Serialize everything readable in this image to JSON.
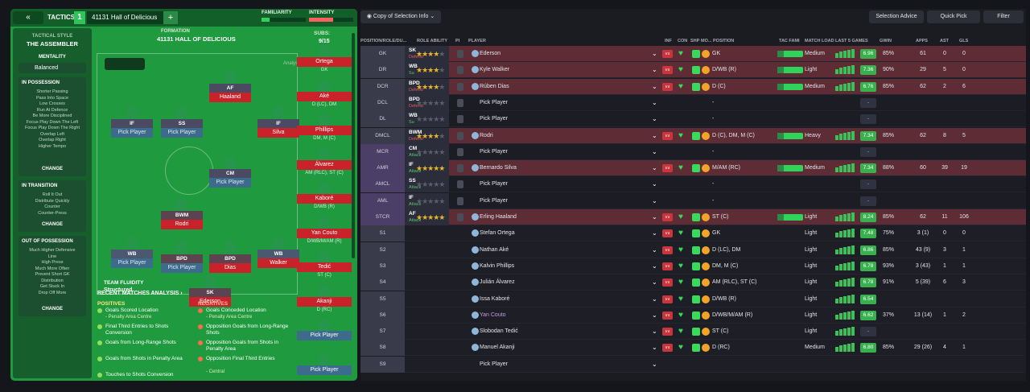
{
  "header": {
    "back_icon": "«",
    "tactics_label": "TACTICS",
    "tactic_num": "1",
    "tactic_name": "41131 Hall of Delicious",
    "add": "+",
    "familiarity": "FAMILIARITY",
    "intensity": "INTENSITY",
    "familiarity_level": 0.18,
    "intensity_level": 0.55
  },
  "sidebar": {
    "style_label": "TACTICAL STYLE",
    "style_value": "THE ASSEMBLER",
    "mentality_label": "MENTALITY",
    "mentality_value": "Balanced",
    "in_possession": {
      "title": "IN POSSESSION",
      "items": [
        "Shorter Passing",
        "Pass Into Space",
        "Low Crosses",
        "Run At Defence",
        "Be More Disciplined",
        "Focus Play Down The Left",
        "Focus Play Down The Right",
        "Overlap Left",
        "Overlap Right",
        "Higher Tempo"
      ],
      "change": "CHANGE"
    },
    "in_transition": {
      "title": "IN TRANSITION",
      "items": [
        "Roll It Out",
        "Distribute Quickly",
        "Counter",
        "Counter-Press"
      ],
      "change": "CHANGE"
    },
    "out_of_possession": {
      "title": "OUT OF POSSESSION",
      "items": [
        "Much Higher Defensive",
        "Line",
        "High Press",
        "Much More Often",
        "Prevent Short GK",
        "Distribution",
        "Get Stuck In",
        "Drop Off More"
      ],
      "change": "CHANGE"
    }
  },
  "formation": {
    "label": "FORMATION",
    "name": "41131 HALL OF DELICIOUS",
    "analysis": "Analysis",
    "team_fluidity_label": "TEAM FLUIDITY",
    "team_fluidity_value": "Structured",
    "subs_label": "SUBS:",
    "subs_value": "9/15",
    "players": [
      {
        "pos": "AF",
        "duty": "At",
        "name": "Haaland"
      },
      {
        "pos": "IF",
        "duty": "At",
        "name": "Pick Player"
      },
      {
        "pos": "SS",
        "duty": "At",
        "name": "Pick Player"
      },
      {
        "pos": "IF",
        "duty": "At",
        "name": "Silva"
      },
      {
        "pos": "CM",
        "duty": "At",
        "name": "Pick Player"
      },
      {
        "pos": "BWM",
        "duty": "De",
        "name": "Rodri"
      },
      {
        "pos": "WB",
        "duty": "Su",
        "name": "Pick Player"
      },
      {
        "pos": "BPD",
        "duty": "De",
        "name": "Pick Player"
      },
      {
        "pos": "BPD",
        "duty": "De",
        "name": "Dias"
      },
      {
        "pos": "WB",
        "duty": "Su",
        "name": "Walker"
      },
      {
        "pos": "SK",
        "duty": "De",
        "name": "Ederson"
      }
    ],
    "subs": [
      {
        "name": "Ortega",
        "pos": "GK"
      },
      {
        "name": "Aké",
        "pos": "D (LC), DM"
      },
      {
        "name": "Phillips",
        "pos": "DM, M (C)"
      },
      {
        "name": "Álvarez",
        "pos": "AM (RLC), ST (C)"
      },
      {
        "name": "Kaboré",
        "pos": "D/WB (R)"
      },
      {
        "name": "Yan Couto",
        "pos": "D/WB/M/AM (R)"
      },
      {
        "name": "Tedić",
        "pos": "ST (C)"
      },
      {
        "name": "Akanji",
        "pos": "D (RC)"
      },
      {
        "name": "Pick Player",
        "pos": ""
      },
      {
        "name": "Pick Player",
        "pos": ""
      }
    ]
  },
  "analysis": {
    "title": "RECENT MATCHES ANALYSIS ›",
    "positives_label": "POSITIVES",
    "negatives_label": "NEGATIVES",
    "positives": [
      {
        "t": "Goals Scored Location",
        "s": "- Penalty Area Centre"
      },
      {
        "t": "Final Third Entries to Shots Conversion",
        "s": ""
      },
      {
        "t": "Goals from Long-Range Shots",
        "s": ""
      },
      {
        "t": "Goals from Shots in Penalty Area",
        "s": ""
      },
      {
        "t": "Touches to Shots Conversion",
        "s": ""
      }
    ],
    "negatives": [
      {
        "t": "Goals Conceded Location",
        "s": "- Penalty Area Centre"
      },
      {
        "t": "Opposition Goals from Long-Range Shots",
        "s": ""
      },
      {
        "t": "Opposition Goals from Shots in Penalty Area",
        "s": ""
      },
      {
        "t": "Opposition Final Third Entries",
        "s": "- Central"
      }
    ]
  },
  "toolbar": {
    "view": "Copy of Selection Info",
    "selection_advice": "Selection Advice",
    "quick_pick": "Quick Pick",
    "filter": "Filter"
  },
  "columns": [
    "POSITION/ROLE/DU...",
    "ROLE ABILITY",
    "PI",
    "PLAYER",
    "INF",
    "CON",
    "SHP",
    "MO...",
    "POSITION",
    "TAC FAMI",
    "MATCH LOAD",
    "LAST 5 GAMES",
    "GWIN",
    "APPS",
    "AST",
    "GLS"
  ],
  "rows": [
    {
      "pos": "GK",
      "role": "SK",
      "duty": "Defend",
      "stars": 3.5,
      "player": "Ederson",
      "position": "GK",
      "load": "Medium",
      "rating": "6.96",
      "gwin": "85%",
      "apps": "61",
      "ast": "0",
      "gls": "0",
      "sel": true,
      "tf": true
    },
    {
      "pos": "DR",
      "role": "WB",
      "duty": "Su",
      "stars": 3.5,
      "player": "Kyle Walker",
      "position": "D/WB (R)",
      "load": "Light",
      "rating": "7.36",
      "gwin": "90%",
      "apps": "29",
      "ast": "5",
      "gls": "0",
      "sel": true,
      "tf": true
    },
    {
      "pos": "DCR",
      "role": "BPD",
      "duty": "Defend",
      "stars": 4,
      "player": "Rúben Dias",
      "position": "D (C)",
      "load": "Medium",
      "rating": "6.76",
      "gwin": "85%",
      "apps": "62",
      "ast": "2",
      "gls": "6",
      "sel": true,
      "tf": true
    },
    {
      "pos": "DCL",
      "role": "BPD",
      "duty": "Defend",
      "stars": 0,
      "player": "Pick Player",
      "position": "-",
      "load": "",
      "rating": "-",
      "gwin": "",
      "apps": "",
      "ast": "",
      "gls": ""
    },
    {
      "pos": "DL",
      "role": "WB",
      "duty": "Su",
      "stars": 0,
      "player": "Pick Player",
      "position": "-",
      "load": "",
      "rating": "-",
      "gwin": "",
      "apps": "",
      "ast": "",
      "gls": ""
    },
    {
      "pos": "DMCL",
      "role": "BWM",
      "duty": "Defend",
      "stars": 4,
      "player": "Rodri",
      "position": "D (C), DM, M (C)",
      "load": "Heavy",
      "rating": "7.34",
      "gwin": "85%",
      "apps": "62",
      "ast": "8",
      "gls": "5",
      "sel": true,
      "tf": true
    },
    {
      "pos": "MCR",
      "role": "CM",
      "duty": "Attack",
      "stars": 0,
      "player": "Pick Player",
      "position": "-",
      "load": "",
      "rating": "-",
      "gwin": "",
      "apps": "",
      "ast": "",
      "gls": ""
    },
    {
      "pos": "AMR",
      "role": "IF",
      "duty": "Attack",
      "stars": 5,
      "player": "Bernardo Silva",
      "position": "M/AM (RC)",
      "load": "Medium",
      "rating": "7.34",
      "gwin": "88%",
      "apps": "60",
      "ast": "39",
      "gls": "19",
      "sel": true,
      "tf": true
    },
    {
      "pos": "AMCL",
      "role": "SS",
      "duty": "Attack",
      "stars": 0,
      "player": "Pick Player",
      "position": "-",
      "load": "",
      "rating": "-",
      "gwin": "",
      "apps": "",
      "ast": "",
      "gls": ""
    },
    {
      "pos": "AML",
      "role": "IF",
      "duty": "Attack",
      "stars": 0,
      "player": "Pick Player",
      "position": "-",
      "load": "",
      "rating": "-",
      "gwin": "",
      "apps": "",
      "ast": "",
      "gls": ""
    },
    {
      "pos": "STCR",
      "role": "AF",
      "duty": "Attack",
      "stars": 5,
      "player": "Erling Haaland",
      "position": "ST (C)",
      "load": "Light",
      "rating": "8.24",
      "gwin": "85%",
      "apps": "62",
      "ast": "11",
      "gls": "106",
      "sel": true,
      "tf": true
    },
    {
      "pos": "S1",
      "player": "Stefan Ortega",
      "position": "GK",
      "load": "Light",
      "rating": "7.48",
      "gwin": "75%",
      "apps": "3 (1)",
      "ast": "0",
      "gls": "0",
      "sub": true
    },
    {
      "pos": "S2",
      "player": "Nathan Aké",
      "position": "D (LC), DM",
      "load": "Light",
      "rating": "6.86",
      "gwin": "85%",
      "apps": "43 (9)",
      "ast": "3",
      "gls": "1",
      "sub": true
    },
    {
      "pos": "S3",
      "player": "Kalvin Phillips",
      "position": "DM, M (C)",
      "load": "Light",
      "rating": "6.78",
      "gwin": "93%",
      "apps": "3 (43)",
      "ast": "1",
      "gls": "1",
      "sub": true
    },
    {
      "pos": "S4",
      "player": "Julián Álvarez",
      "position": "AM (RLC), ST (C)",
      "load": "Light",
      "rating": "6.78",
      "gwin": "91%",
      "apps": "5 (39)",
      "ast": "6",
      "gls": "3",
      "sub": true
    },
    {
      "pos": "S5",
      "player": "Issa Kaboré",
      "position": "D/WB (R)",
      "load": "Light",
      "rating": "6.54",
      "gwin": "",
      "apps": "",
      "ast": "",
      "gls": "",
      "sub": true
    },
    {
      "pos": "S6",
      "player": "Yan Couto",
      "position": "D/WB/M/AM (R)",
      "load": "Light",
      "rating": "6.62",
      "gwin": "37%",
      "apps": "13 (14)",
      "ast": "1",
      "gls": "2",
      "sub": true,
      "alt": true
    },
    {
      "pos": "S7",
      "player": "Slobodan Tedić",
      "position": "ST (C)",
      "load": "Light",
      "rating": "-",
      "gwin": "",
      "apps": "",
      "ast": "",
      "gls": "",
      "sub": true
    },
    {
      "pos": "S8",
      "player": "Manuel Akanji",
      "position": "D (RC)",
      "load": "Medium",
      "rating": "6.80",
      "gwin": "85%",
      "apps": "29 (26)",
      "ast": "4",
      "gls": "1",
      "sub": true
    },
    {
      "pos": "S9",
      "player": "Pick Player",
      "position": "",
      "load": "",
      "rating": "",
      "gwin": "",
      "apps": "",
      "ast": "",
      "gls": "",
      "sub": true
    }
  ]
}
